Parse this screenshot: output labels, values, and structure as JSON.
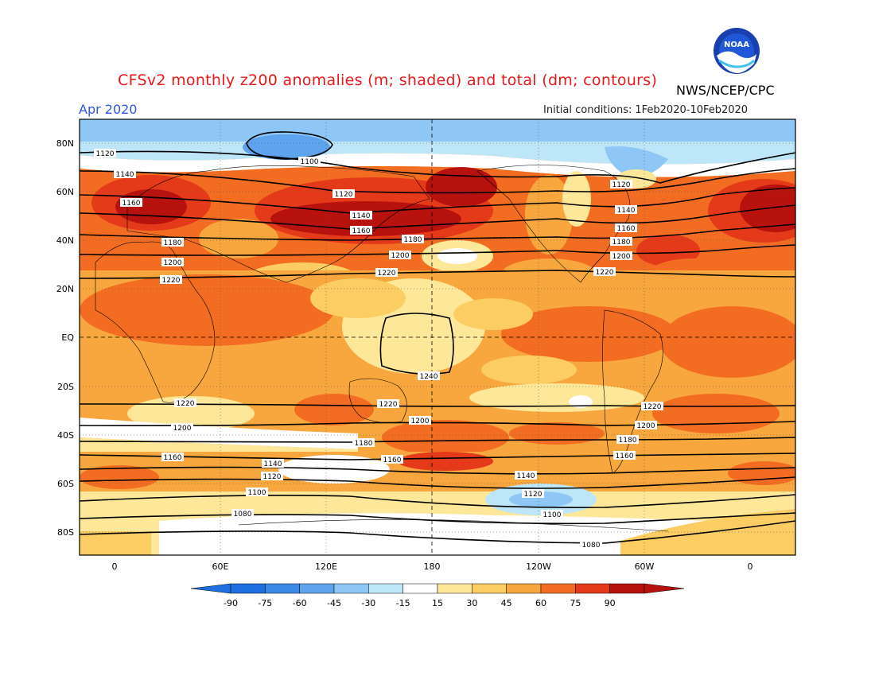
{
  "header": {
    "title": "CFSv2 monthly z200 anomalies (m; shaded) and total (dm; contours)",
    "agency": "NWS/NCEP/CPC",
    "valid_month": "Apr 2020",
    "initial_conditions_label": "Initial conditions:",
    "initial_conditions_value": "1Feb2020-10Feb2020",
    "logo_text": "NOAA"
  },
  "axes": {
    "lat_labels": [
      "80N",
      "60N",
      "40N",
      "20N",
      "EQ",
      "20S",
      "40S",
      "60S",
      "80S"
    ],
    "lon_labels": [
      "0",
      "60E",
      "120E",
      "180",
      "120W",
      "60W",
      "0"
    ]
  },
  "colorbar": {
    "ticks": [
      "-90",
      "-75",
      "-60",
      "-45",
      "-30",
      "-15",
      "15",
      "30",
      "45",
      "60",
      "75",
      "90"
    ],
    "colors": [
      "#1e6fe0",
      "#3b8ae6",
      "#5ea3ee",
      "#8ec6f5",
      "#bde6f8",
      "#ffffff",
      "#fde89a",
      "#fbcd62",
      "#f8a73e",
      "#f26d21",
      "#e43a1a",
      "#b8120f"
    ]
  },
  "contours": [
    {
      "label": "1080",
      "positions": [
        "305,646",
        "743,685"
      ]
    },
    {
      "label": "1100",
      "positions": [
        "389,203",
        "323,619",
        "694,647"
      ]
    },
    {
      "label": "1120",
      "positions": [
        "132,193",
        "432,244",
        "781,232",
        "342,599",
        "670,621"
      ]
    },
    {
      "label": "1140",
      "positions": [
        "157,219",
        "454,271",
        "787,264",
        "343,583",
        "661,598"
      ]
    },
    {
      "label": "1160",
      "positions": [
        "165,255",
        "454,290",
        "787,287",
        "217,575",
        "493,578",
        "785,573"
      ]
    },
    {
      "label": "1180",
      "positions": [
        "217,305",
        "519,301",
        "781,304",
        "457,557",
        "789,553"
      ]
    },
    {
      "label": "1200",
      "positions": [
        "217,330",
        "503,321",
        "781,322",
        "229,538",
        "528,529",
        "812,535"
      ]
    },
    {
      "label": "1220",
      "positions": [
        "215,352",
        "486,343",
        "760,342",
        "233,507",
        "488,508",
        "820,511"
      ]
    },
    {
      "label": "1240",
      "positions": [
        "539,473"
      ]
    }
  ]
}
